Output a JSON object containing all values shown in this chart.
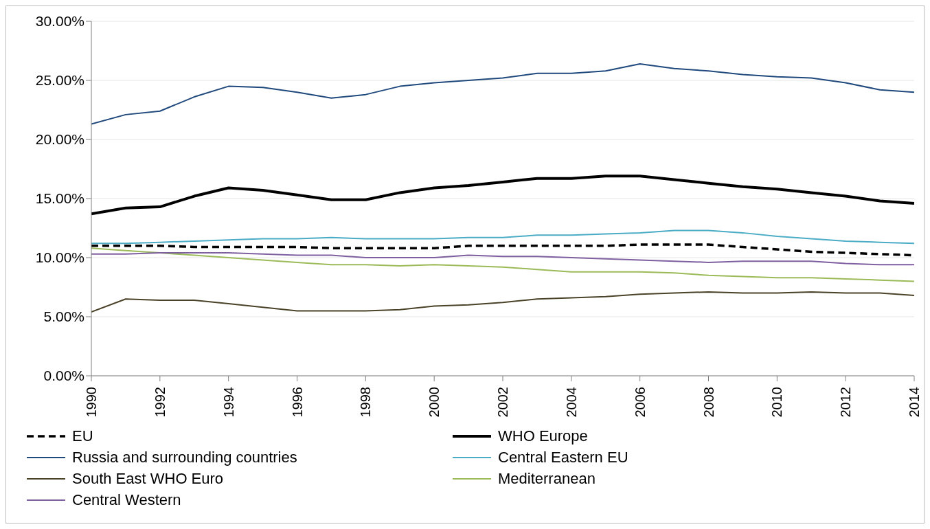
{
  "chart_data": {
    "type": "line",
    "x": [
      1990,
      1991,
      1992,
      1993,
      1994,
      1995,
      1996,
      1997,
      1998,
      1999,
      2000,
      2001,
      2002,
      2003,
      2004,
      2005,
      2006,
      2007,
      2008,
      2009,
      2010,
      2011,
      2012,
      2013,
      2014
    ],
    "xlim": [
      1990,
      2014
    ],
    "xticks": [
      1990,
      1992,
      1994,
      1996,
      1998,
      2000,
      2002,
      2004,
      2006,
      2008,
      2010,
      2012,
      2014
    ],
    "ylim": [
      0,
      30
    ],
    "yticks": [
      {
        "value": 0,
        "label": "0.00%"
      },
      {
        "value": 5,
        "label": "5.00%"
      },
      {
        "value": 10,
        "label": "10.00%"
      },
      {
        "value": 15,
        "label": "15.00%"
      },
      {
        "value": 20,
        "label": "20.00%"
      },
      {
        "value": 25,
        "label": "25.00%"
      },
      {
        "value": 30,
        "label": "30.00%"
      }
    ],
    "grid": "y",
    "legend": "bottom",
    "marker": "none",
    "series": [
      {
        "name": "EU",
        "color": "#000000",
        "line_style": "dashed",
        "values": [
          11.0,
          11.0,
          11.0,
          10.9,
          10.9,
          10.9,
          10.9,
          10.8,
          10.8,
          10.8,
          10.8,
          11.0,
          11.0,
          11.0,
          11.0,
          11.0,
          11.1,
          11.1,
          11.1,
          10.9,
          10.7,
          10.5,
          10.4,
          10.3,
          10.2
        ]
      },
      {
        "name": "WHO Europe",
        "color": "#000000",
        "values": [
          13.7,
          14.2,
          14.3,
          15.2,
          15.9,
          15.7,
          15.3,
          14.9,
          14.9,
          15.5,
          15.9,
          16.1,
          16.4,
          16.7,
          16.7,
          16.9,
          16.9,
          16.6,
          16.3,
          16.0,
          15.8,
          15.5,
          15.2,
          14.8,
          14.6
        ]
      },
      {
        "name": "Russia and surrounding countries",
        "color": "#1f497d",
        "values": [
          21.3,
          22.1,
          22.4,
          23.6,
          24.5,
          24.4,
          24.0,
          23.5,
          23.8,
          24.5,
          24.8,
          25.0,
          25.2,
          25.6,
          25.6,
          25.8,
          26.4,
          26.0,
          25.8,
          25.5,
          25.3,
          25.2,
          24.8,
          24.2,
          24.0
        ]
      },
      {
        "name": "Central Eastern EU",
        "color": "#4bacc6",
        "values": [
          11.2,
          11.2,
          11.3,
          11.4,
          11.5,
          11.6,
          11.6,
          11.7,
          11.6,
          11.6,
          11.6,
          11.7,
          11.7,
          11.9,
          11.9,
          12.0,
          12.1,
          12.3,
          12.3,
          12.1,
          11.8,
          11.6,
          11.4,
          11.3,
          11.2
        ]
      },
      {
        "name": "South East WHO Euro",
        "color": "#4a4228",
        "values": [
          5.4,
          6.5,
          6.4,
          6.4,
          6.1,
          5.8,
          5.5,
          5.5,
          5.5,
          5.6,
          5.9,
          6.0,
          6.2,
          6.5,
          6.6,
          6.7,
          6.9,
          7.0,
          7.1,
          7.0,
          7.0,
          7.1,
          7.0,
          7.0,
          6.8
        ]
      },
      {
        "name": "Mediterranean",
        "color": "#9bbb59",
        "values": [
          10.8,
          10.6,
          10.4,
          10.2,
          10.0,
          9.8,
          9.6,
          9.4,
          9.4,
          9.3,
          9.4,
          9.3,
          9.2,
          9.0,
          8.8,
          8.8,
          8.8,
          8.7,
          8.5,
          8.4,
          8.3,
          8.3,
          8.2,
          8.1,
          8.0
        ]
      },
      {
        "name": "Central Western",
        "color": "#7f5fa0",
        "values": [
          10.3,
          10.3,
          10.4,
          10.4,
          10.4,
          10.3,
          10.2,
          10.2,
          10.0,
          10.0,
          10.0,
          10.2,
          10.1,
          10.1,
          10.0,
          9.9,
          9.8,
          9.7,
          9.6,
          9.7,
          9.7,
          9.7,
          9.5,
          9.4,
          9.4
        ]
      }
    ]
  }
}
